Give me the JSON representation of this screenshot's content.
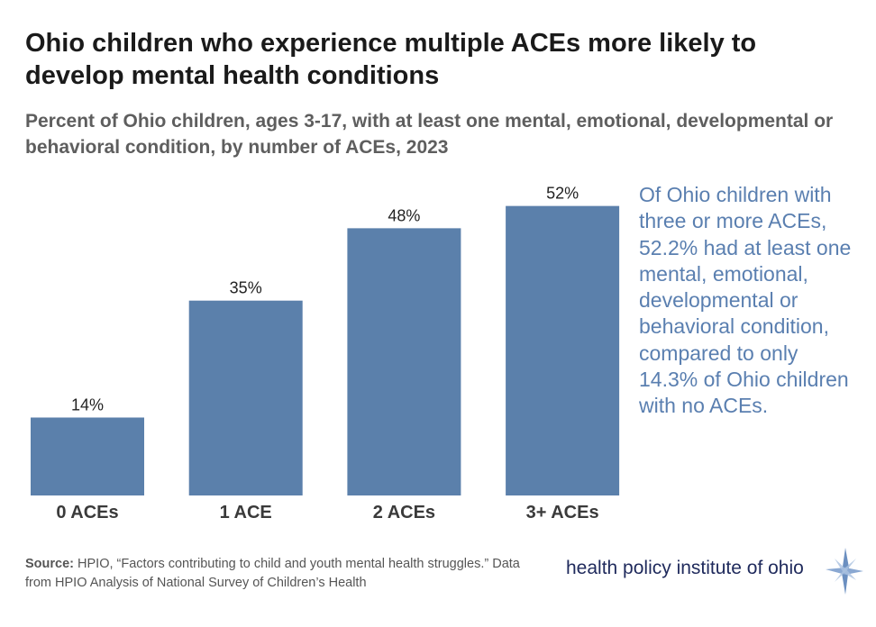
{
  "title": "Ohio children who experience multiple ACEs more likely to develop mental health conditions",
  "subtitle": "Percent of Ohio children, ages 3-17, with at least one mental, emotional, developmental or behavioral condition, by number of ACEs, 2023",
  "chart_data": {
    "type": "bar",
    "title": "",
    "xlabel": "",
    "ylabel": "",
    "categories": [
      "0 ACEs",
      "1 ACE",
      "2 ACEs",
      "3+ ACEs"
    ],
    "values": [
      14,
      35,
      48,
      52
    ],
    "data_labels": [
      "14%",
      "35%",
      "48%",
      "52%"
    ],
    "ylim": [
      0,
      100
    ],
    "grid": false,
    "bar_color": "#5b80ab"
  },
  "note": "Of Ohio children with three or more ACEs, 52.2% had at least one mental, emotional, developmental or behavioral condition, compared to only 14.3% of Ohio children with no ACEs.",
  "source": {
    "label": "Source:",
    "text": " HPIO, “Factors contributing to child and youth mental health struggles.” Data from HPIO Analysis of National Survey of Children’s Health"
  },
  "logo": {
    "text": "health policy institute of ohio",
    "icon": "compass-star-icon"
  },
  "colors": {
    "bar": "#5b80ab",
    "note": "#5a7fb0",
    "logo_text": "#1f2a5c"
  }
}
